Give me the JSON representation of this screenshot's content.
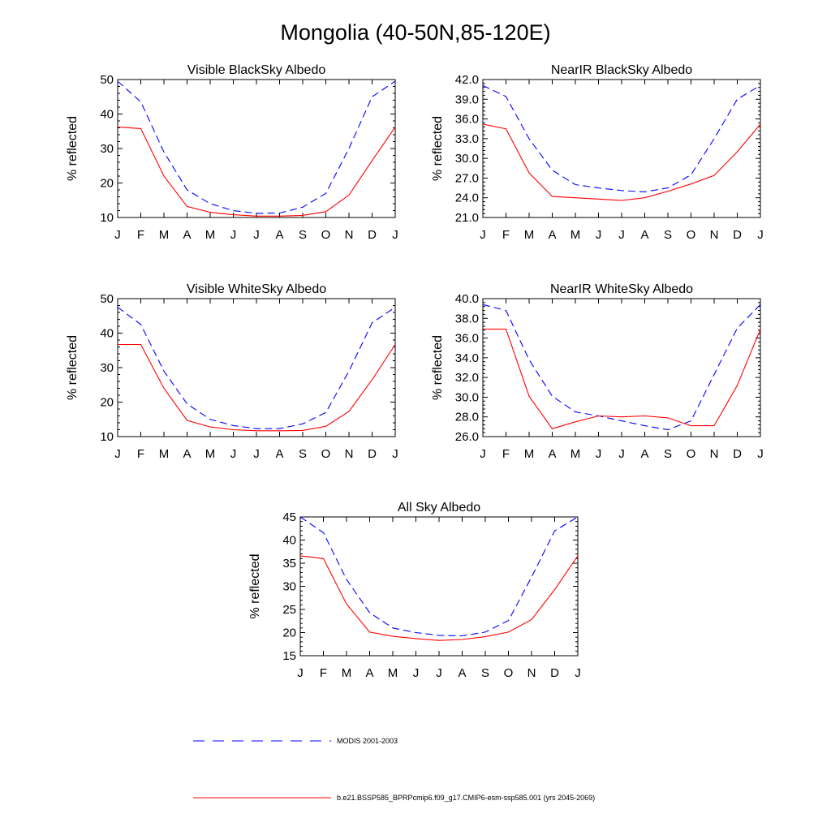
{
  "figure": {
    "title": "Mongolia (40-50N,85-120E)"
  },
  "legend": [
    {
      "label": "MODIS 2001-2003",
      "color": "#0000ff",
      "dash": true
    },
    {
      "label": "b.e21.BSSP585_BPRPcmip6.f09_g17.CMIP6-esm-ssp585.001 (yrs 2045-2069)",
      "color": "#ff0000",
      "dash": false
    }
  ],
  "chart_data": [
    {
      "type": "line",
      "title": "Visible BlackSky Albedo",
      "ylabel": "% reflected",
      "categories": [
        "J",
        "F",
        "M",
        "A",
        "M",
        "J",
        "J",
        "A",
        "S",
        "O",
        "N",
        "D",
        "J"
      ],
      "ylim": [
        10,
        50
      ],
      "yticks": [
        "10",
        "20",
        "30",
        "40",
        "50"
      ],
      "series": [
        {
          "name": "MODIS 2001-2003",
          "color": "#0000ff",
          "dash": true,
          "values": [
            49.5,
            43.5,
            29,
            18,
            14,
            12,
            11.2,
            11.3,
            13,
            17,
            30,
            45,
            49.5
          ]
        },
        {
          "name": "b.e21.BSSP585_BPRPcmip6.f09_g17.CMIP6-esm-ssp585.001 (yrs 2045-2069)",
          "color": "#ff0000",
          "dash": false,
          "values": [
            36.2,
            35.8,
            22,
            13.2,
            11.5,
            10.8,
            10.4,
            10.4,
            10.6,
            11.7,
            16.5,
            26.5,
            36.2
          ]
        }
      ]
    },
    {
      "type": "line",
      "title": "NearIR BlackSky Albedo",
      "ylabel": "% reflected",
      "categories": [
        "J",
        "F",
        "M",
        "A",
        "M",
        "J",
        "J",
        "A",
        "S",
        "O",
        "N",
        "D",
        "J"
      ],
      "ylim": [
        21,
        42
      ],
      "yticks": [
        "21.0",
        "24.0",
        "27.0",
        "30.0",
        "33.0",
        "36.0",
        "39.0",
        "42.0"
      ],
      "series": [
        {
          "name": "MODIS 2001-2003",
          "color": "#0000ff",
          "dash": true,
          "values": [
            41.1,
            39.4,
            33,
            28.2,
            26,
            25.5,
            25.1,
            24.9,
            25.5,
            27.5,
            33,
            39,
            41.1
          ]
        },
        {
          "name": "b.e21.BSSP585_BPRPcmip6.f09_g17.CMIP6-esm-ssp585.001 (yrs 2045-2069)",
          "color": "#ff0000",
          "dash": false,
          "values": [
            35.2,
            34.5,
            27.8,
            24.2,
            24,
            23.8,
            23.6,
            24,
            25,
            26.1,
            27.4,
            31,
            35.2
          ]
        }
      ]
    },
    {
      "type": "line",
      "title": "Visible WhiteSky Albedo",
      "ylabel": "% reflected",
      "categories": [
        "J",
        "F",
        "M",
        "A",
        "M",
        "J",
        "J",
        "A",
        "S",
        "O",
        "N",
        "D",
        "J"
      ],
      "ylim": [
        10,
        50
      ],
      "yticks": [
        "10",
        "20",
        "30",
        "40",
        "50"
      ],
      "series": [
        {
          "name": "MODIS 2001-2003",
          "color": "#0000ff",
          "dash": true,
          "values": [
            47.5,
            42.5,
            29,
            19.5,
            15,
            13.2,
            12.3,
            12.3,
            13.7,
            17,
            29,
            43,
            47.5
          ]
        },
        {
          "name": "b.e21.BSSP585_BPRPcmip6.f09_g17.CMIP6-esm-ssp585.001 (yrs 2045-2069)",
          "color": "#ff0000",
          "dash": false,
          "values": [
            36.7,
            36.7,
            24,
            14.7,
            12.8,
            12,
            11.7,
            11.7,
            11.8,
            13,
            17.3,
            26.5,
            36.7
          ]
        }
      ]
    },
    {
      "type": "line",
      "title": "NearIR WhiteSky Albedo",
      "ylabel": "% reflected",
      "categories": [
        "J",
        "F",
        "M",
        "A",
        "M",
        "J",
        "J",
        "A",
        "S",
        "O",
        "N",
        "D",
        "J"
      ],
      "ylim": [
        26,
        40
      ],
      "yticks": [
        "26.0",
        "28.0",
        "30.0",
        "32.0",
        "34.0",
        "36.0",
        "38.0",
        "40.0"
      ],
      "series": [
        {
          "name": "MODIS 2001-2003",
          "color": "#0000ff",
          "dash": true,
          "values": [
            39.4,
            38.8,
            33.8,
            30.1,
            28.5,
            28.1,
            27.6,
            27.1,
            26.7,
            27.6,
            32.3,
            37,
            39.4
          ]
        },
        {
          "name": "b.e21.BSSP585_BPRPcmip6.f09_g17.CMIP6-esm-ssp585.001 (yrs 2045-2069)",
          "color": "#ff0000",
          "dash": false,
          "values": [
            36.9,
            36.9,
            30.1,
            26.8,
            27.5,
            28.1,
            28,
            28.1,
            27.9,
            27.1,
            27.1,
            31.2,
            36.9
          ]
        }
      ]
    },
    {
      "type": "line",
      "title": "All Sky Albedo",
      "ylabel": "% reflected",
      "categories": [
        "J",
        "F",
        "M",
        "A",
        "M",
        "J",
        "J",
        "A",
        "S",
        "O",
        "N",
        "D",
        "J"
      ],
      "ylim": [
        15,
        45
      ],
      "yticks": [
        "15",
        "20",
        "25",
        "30",
        "35",
        "40",
        "45"
      ],
      "series": [
        {
          "name": "MODIS 2001-2003",
          "color": "#0000ff",
          "dash": true,
          "values": [
            45,
            41.6,
            31.5,
            24.3,
            21,
            20,
            19.4,
            19.3,
            20.1,
            22.6,
            32,
            42,
            45
          ]
        },
        {
          "name": "b.e21.BSSP585_BPRPcmip6.f09_g17.CMIP6-esm-ssp585.001 (yrs 2045-2069)",
          "color": "#ff0000",
          "dash": false,
          "values": [
            36.6,
            36,
            26.2,
            20.1,
            19.2,
            18.7,
            18.3,
            18.5,
            19.1,
            20.1,
            22.8,
            29.3,
            36.6
          ]
        }
      ]
    }
  ]
}
